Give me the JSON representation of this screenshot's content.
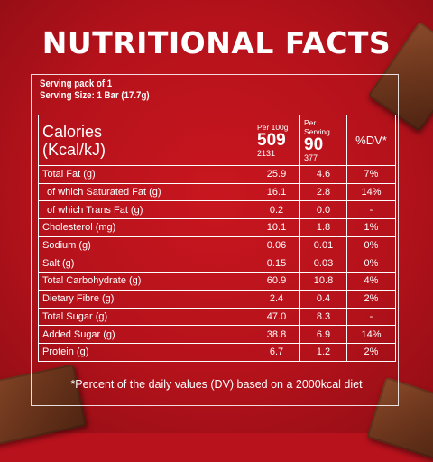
{
  "title": "NUTRITIONAL FACTS",
  "serving": {
    "pack": "Serving pack of 1",
    "size": "Serving Size: 1 Bar (17.7g)"
  },
  "header": {
    "label_line1": "Calories",
    "label_line2": "(Kcal/kJ)",
    "per100": {
      "label": "Per 100g",
      "kcal": "509",
      "kj": "2131"
    },
    "perServing": {
      "label": "Per Serving",
      "kcal": "90",
      "kj": "377"
    },
    "dv": "%DV*"
  },
  "rows": [
    {
      "name": "Total Fat (g)",
      "per100": "25.9",
      "serving": "4.6",
      "dv": "7%"
    },
    {
      "name": " of which Saturated Fat (g)",
      "per100": "16.1",
      "serving": "2.8",
      "dv": "14%"
    },
    {
      "name": " of which Trans Fat (g)",
      "per100": "0.2",
      "serving": "0.0",
      "dv": "-"
    },
    {
      "name": "Cholesterol (mg)",
      "per100": "10.1",
      "serving": "1.8",
      "dv": "1%"
    },
    {
      "name": "Sodium (g)",
      "per100": "0.06",
      "serving": "0.01",
      "dv": "0%"
    },
    {
      "name": "Salt (g)",
      "per100": "0.15",
      "serving": "0.03",
      "dv": "0%"
    },
    {
      "name": "Total Carbohydrate (g)",
      "per100": "60.9",
      "serving": "10.8",
      "dv": "4%"
    },
    {
      "name": "Dietary Fibre (g)",
      "per100": "2.4",
      "serving": "0.4",
      "dv": "2%"
    },
    {
      "name": "Total Sugar (g)",
      "per100": "47.0",
      "serving": "8.3",
      "dv": "-"
    },
    {
      "name": "Added Sugar (g)",
      "per100": "38.8",
      "serving": "6.9",
      "dv": "14%"
    },
    {
      "name": "Protein (g)",
      "per100": "6.7",
      "serving": "1.2",
      "dv": "2%"
    }
  ],
  "footnote": "*Percent of the daily values (DV) based on a 2000kcal diet",
  "colors": {
    "background": "#b8121c",
    "text": "#ffffff",
    "chocolate": "#6b351c"
  }
}
